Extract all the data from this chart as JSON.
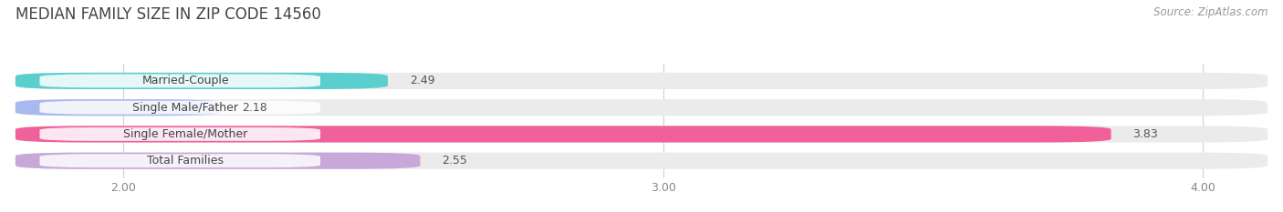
{
  "title": "MEDIAN FAMILY SIZE IN ZIP CODE 14560",
  "source": "Source: ZipAtlas.com",
  "categories": [
    "Married-Couple",
    "Single Male/Father",
    "Single Female/Mother",
    "Total Families"
  ],
  "values": [
    2.49,
    2.18,
    3.83,
    2.55
  ],
  "bar_colors": [
    "#5bcece",
    "#aab8f0",
    "#f0609a",
    "#c8a8d8"
  ],
  "track_color": "#ebebeb",
  "label_bg_color": "#f5f5f5",
  "xlim": [
    1.8,
    4.12
  ],
  "xticks": [
    2.0,
    3.0,
    4.0
  ],
  "xtick_labels": [
    "2.00",
    "3.00",
    "4.00"
  ],
  "bar_height": 0.62,
  "figsize": [
    14.06,
    2.33
  ],
  "dpi": 100,
  "title_fontsize": 12,
  "label_fontsize": 9,
  "value_fontsize": 9,
  "source_fontsize": 8.5,
  "background_color": "#ffffff",
  "grid_color": "#d0d0d0"
}
